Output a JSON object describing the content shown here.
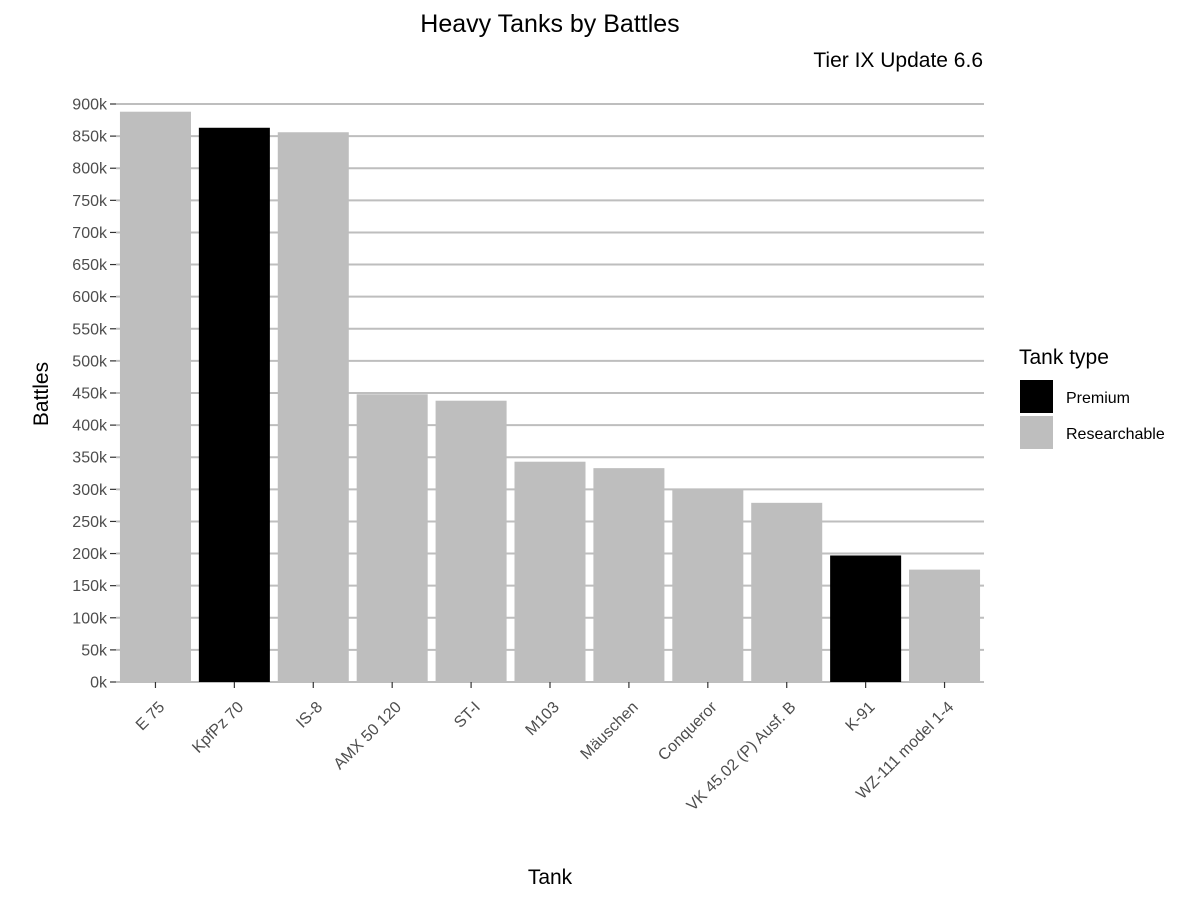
{
  "chart_data": {
    "type": "bar",
    "title": "Heavy Tanks by Battles",
    "subtitle": "Tier IX Update 6.6",
    "xlabel": "Tank",
    "ylabel": "Battles",
    "ylim": [
      0,
      900000
    ],
    "yticks": [
      0,
      50000,
      100000,
      150000,
      200000,
      250000,
      300000,
      350000,
      400000,
      450000,
      500000,
      550000,
      600000,
      650000,
      700000,
      750000,
      800000,
      850000,
      900000
    ],
    "ytick_labels": [
      "0k",
      "50k",
      "100k",
      "150k",
      "200k",
      "250k",
      "300k",
      "350k",
      "400k",
      "450k",
      "500k",
      "550k",
      "600k",
      "650k",
      "700k",
      "750k",
      "800k",
      "850k",
      "900k"
    ],
    "grid": true,
    "categories": [
      "E 75",
      "KpfPz 70",
      "IS-8",
      "AMX 50 120",
      "ST-I",
      "M103",
      "Mäuschen",
      "Conqueror",
      "VK 45.02 (P) Ausf. B",
      "K-91",
      "WZ-111 model 1-4"
    ],
    "values": [
      888000,
      863000,
      856000,
      448000,
      438000,
      343000,
      333000,
      300000,
      279000,
      197000,
      175000
    ],
    "tank_type": [
      "Researchable",
      "Premium",
      "Researchable",
      "Researchable",
      "Researchable",
      "Researchable",
      "Researchable",
      "Researchable",
      "Researchable",
      "Premium",
      "Researchable"
    ],
    "legend": {
      "title": "Tank type",
      "placement": "right",
      "entries": [
        {
          "label": "Premium",
          "color": "#000000"
        },
        {
          "label": "Researchable",
          "color": "#bebebe"
        }
      ]
    }
  }
}
